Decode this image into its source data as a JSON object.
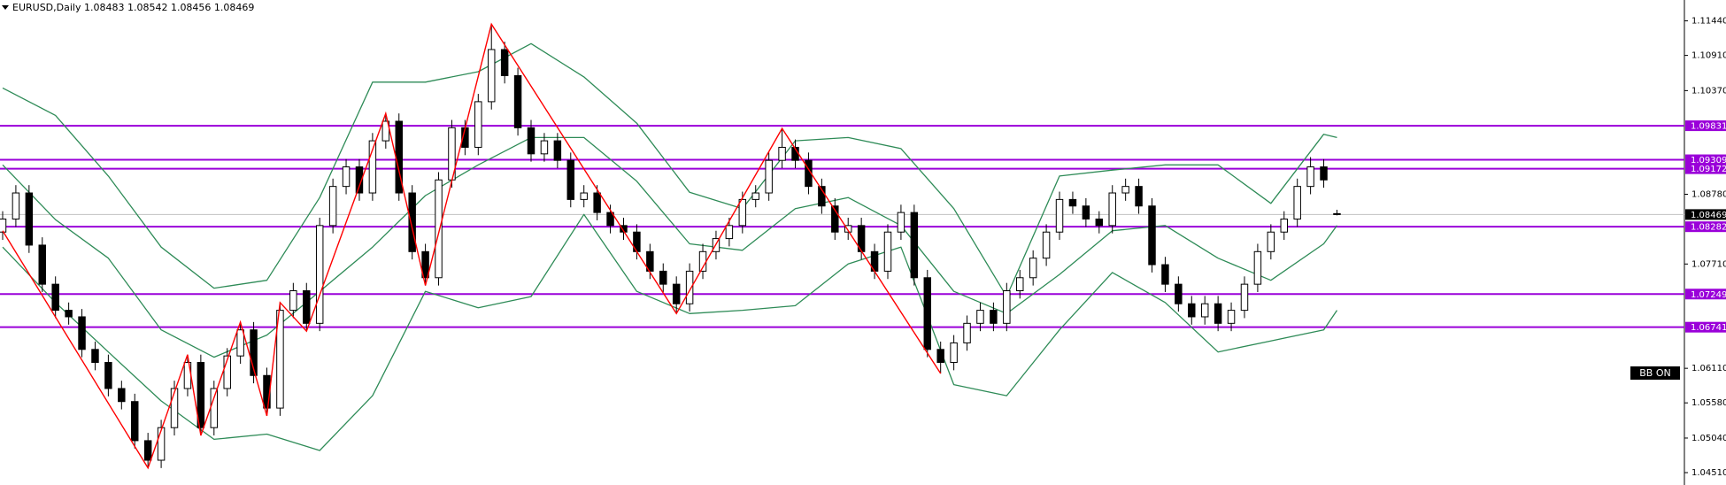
{
  "chart_data": {
    "type": "candlestick",
    "title": "EURUSD,Daily  1.08483 1.08542 1.08456 1.08469",
    "ylim": [
      1.0432,
      1.1176
    ],
    "xlim": [
      -0.2,
      127.3
    ],
    "yticks": [
      {
        "value": 1.1144,
        "label": "1.11440"
      },
      {
        "value": 1.1091,
        "label": "1.10910"
      },
      {
        "value": 1.1037,
        "label": "1.10370"
      },
      {
        "value": 1.0878,
        "label": "1.08780"
      },
      {
        "value": 1.0771,
        "label": "1.07710"
      },
      {
        "value": 1.0611,
        "label": "1.06110"
      },
      {
        "value": 1.0558,
        "label": "1.05580"
      },
      {
        "value": 1.0504,
        "label": "1.05040"
      },
      {
        "value": 1.0451,
        "label": "1.04510"
      }
    ],
    "up_color": "#ffffff",
    "down_color": "#000000",
    "candles": [
      [
        1.082,
        1.0852,
        1.0808,
        1.084
      ],
      [
        1.084,
        1.0892,
        1.0828,
        1.088
      ],
      [
        1.088,
        1.0892,
        1.0788,
        1.08
      ],
      [
        1.08,
        1.0812,
        1.0728,
        1.074
      ],
      [
        1.074,
        1.0752,
        1.0688,
        1.07
      ],
      [
        1.07,
        1.0712,
        1.0678,
        1.069
      ],
      [
        1.069,
        1.0702,
        1.0628,
        1.064
      ],
      [
        1.064,
        1.0652,
        1.0608,
        1.062
      ],
      [
        1.062,
        1.0632,
        1.0568,
        1.058
      ],
      [
        1.058,
        1.0592,
        1.0548,
        1.056
      ],
      [
        1.056,
        1.0572,
        1.0488,
        1.05
      ],
      [
        1.05,
        1.0512,
        1.0458,
        1.047
      ],
      [
        1.047,
        1.0532,
        1.0458,
        1.052
      ],
      [
        1.052,
        1.0592,
        1.0508,
        1.058
      ],
      [
        1.058,
        1.0632,
        1.0568,
        1.062
      ],
      [
        1.062,
        1.0632,
        1.0508,
        1.052
      ],
      [
        1.052,
        1.0592,
        1.0508,
        1.058
      ],
      [
        1.058,
        1.0642,
        1.0568,
        1.063
      ],
      [
        1.063,
        1.0682,
        1.0618,
        1.067
      ],
      [
        1.067,
        1.0682,
        1.0588,
        1.06
      ],
      [
        1.06,
        1.0612,
        1.0538,
        1.055
      ],
      [
        1.055,
        1.0712,
        1.0538,
        1.07
      ],
      [
        1.07,
        1.0742,
        1.0688,
        1.073
      ],
      [
        1.073,
        1.0742,
        1.0668,
        1.068
      ],
      [
        1.068,
        1.0842,
        1.0668,
        1.083
      ],
      [
        1.083,
        1.0902,
        1.0818,
        1.089
      ],
      [
        1.089,
        1.0932,
        1.0878,
        1.092
      ],
      [
        1.092,
        1.0932,
        1.0868,
        1.088
      ],
      [
        1.088,
        1.0972,
        1.0868,
        1.096
      ],
      [
        1.096,
        1.1002,
        1.0948,
        1.099
      ],
      [
        1.099,
        1.1002,
        1.0868,
        1.088
      ],
      [
        1.088,
        1.0892,
        1.0778,
        1.079
      ],
      [
        1.079,
        1.0802,
        1.0738,
        1.075
      ],
      [
        1.075,
        1.0912,
        1.0738,
        1.09
      ],
      [
        1.09,
        1.0992,
        1.0888,
        1.098
      ],
      [
        1.098,
        1.0992,
        1.0938,
        1.095
      ],
      [
        1.095,
        1.1032,
        1.0938,
        1.102
      ],
      [
        1.102,
        1.1139,
        1.1008,
        1.11
      ],
      [
        1.11,
        1.1112,
        1.1048,
        1.106
      ],
      [
        1.106,
        1.1072,
        1.0968,
        1.098
      ],
      [
        1.098,
        1.0992,
        1.0928,
        1.094
      ],
      [
        1.094,
        1.0972,
        1.0928,
        1.096
      ],
      [
        1.096,
        1.0972,
        1.0918,
        1.093
      ],
      [
        1.093,
        1.0942,
        1.0858,
        1.087
      ],
      [
        1.087,
        1.0892,
        1.0858,
        1.088
      ],
      [
        1.088,
        1.0892,
        1.0838,
        1.085
      ],
      [
        1.085,
        1.0862,
        1.0818,
        1.083
      ],
      [
        1.083,
        1.0842,
        1.0808,
        1.082
      ],
      [
        1.082,
        1.0832,
        1.0778,
        1.079
      ],
      [
        1.079,
        1.0802,
        1.0748,
        1.076
      ],
      [
        1.076,
        1.0772,
        1.0728,
        1.074
      ],
      [
        1.074,
        1.0752,
        1.0695,
        1.071
      ],
      [
        1.071,
        1.0772,
        1.0698,
        1.076
      ],
      [
        1.076,
        1.0802,
        1.0748,
        1.079
      ],
      [
        1.079,
        1.0822,
        1.0778,
        1.081
      ],
      [
        1.081,
        1.0842,
        1.0798,
        1.083
      ],
      [
        1.083,
        1.0882,
        1.0818,
        1.087
      ],
      [
        1.087,
        1.0892,
        1.0858,
        1.088
      ],
      [
        1.088,
        1.0942,
        1.0868,
        1.093
      ],
      [
        1.093,
        1.0979,
        1.0918,
        1.095
      ],
      [
        1.095,
        1.0962,
        1.0918,
        1.093
      ],
      [
        1.093,
        1.0942,
        1.0878,
        1.089
      ],
      [
        1.089,
        1.0902,
        1.0848,
        1.086
      ],
      [
        1.086,
        1.0872,
        1.0808,
        1.082
      ],
      [
        1.082,
        1.0842,
        1.0808,
        1.083
      ],
      [
        1.083,
        1.0842,
        1.0778,
        1.079
      ],
      [
        1.079,
        1.0802,
        1.0748,
        1.076
      ],
      [
        1.076,
        1.0832,
        1.0748,
        1.082
      ],
      [
        1.082,
        1.0862,
        1.0808,
        1.085
      ],
      [
        1.085,
        1.0862,
        1.0738,
        1.075
      ],
      [
        1.075,
        1.0762,
        1.0628,
        1.064
      ],
      [
        1.064,
        1.0652,
        1.0603,
        1.062
      ],
      [
        1.062,
        1.0662,
        1.0608,
        1.065
      ],
      [
        1.065,
        1.0692,
        1.0638,
        1.068
      ],
      [
        1.068,
        1.0712,
        1.0668,
        1.07
      ],
      [
        1.07,
        1.0712,
        1.0668,
        1.068
      ],
      [
        1.068,
        1.0742,
        1.0668,
        1.073
      ],
      [
        1.073,
        1.0762,
        1.0718,
        1.075
      ],
      [
        1.075,
        1.0792,
        1.0738,
        1.078
      ],
      [
        1.078,
        1.0832,
        1.0768,
        1.082
      ],
      [
        1.082,
        1.0882,
        1.0808,
        1.087
      ],
      [
        1.087,
        1.0882,
        1.0848,
        1.086
      ],
      [
        1.086,
        1.0872,
        1.0828,
        1.084
      ],
      [
        1.084,
        1.0852,
        1.0818,
        1.083
      ],
      [
        1.083,
        1.0892,
        1.0818,
        1.088
      ],
      [
        1.088,
        1.0902,
        1.0868,
        1.089
      ],
      [
        1.089,
        1.0902,
        1.0848,
        1.086
      ],
      [
        1.086,
        1.0872,
        1.0758,
        1.077
      ],
      [
        1.077,
        1.0782,
        1.0728,
        1.074
      ],
      [
        1.074,
        1.0752,
        1.0698,
        1.071
      ],
      [
        1.071,
        1.0722,
        1.0678,
        1.069
      ],
      [
        1.069,
        1.0722,
        1.0678,
        1.071
      ],
      [
        1.071,
        1.0722,
        1.0668,
        1.068
      ],
      [
        1.068,
        1.0712,
        1.0668,
        1.07
      ],
      [
        1.07,
        1.0752,
        1.0688,
        1.074
      ],
      [
        1.074,
        1.0802,
        1.0728,
        1.079
      ],
      [
        1.079,
        1.0832,
        1.0778,
        1.082
      ],
      [
        1.082,
        1.0852,
        1.0808,
        1.084
      ],
      [
        1.084,
        1.0902,
        1.0828,
        1.089
      ],
      [
        1.089,
        1.0935,
        1.0878,
        1.092
      ],
      [
        1.092,
        1.0932,
        1.0888,
        1.09
      ],
      [
        1.08483,
        1.08542,
        1.08456,
        1.08469
      ]
    ],
    "bands": {
      "x": [
        0,
        4,
        8,
        12,
        16,
        20,
        24,
        28,
        32,
        36,
        40,
        44,
        48,
        52,
        56,
        60,
        64,
        68,
        72,
        76,
        80,
        84,
        88,
        92,
        96,
        100,
        101
      ],
      "series": [
        {
          "color": "#2e8b57",
          "values": [
            1.1041,
            1.0999,
            1.0906,
            1.0797,
            1.0734,
            1.0746,
            1.0873,
            1.105,
            1.105,
            1.1066,
            1.1109,
            1.1058,
            1.0987,
            1.0881,
            1.0856,
            1.096,
            1.0965,
            1.0948,
            1.0856,
            1.0721,
            1.0906,
            1.0915,
            1.0923,
            1.0923,
            1.0864,
            1.097,
            1.0965
          ]
        },
        {
          "color": "#2e8b57",
          "values": [
            1.0923,
            1.0839,
            1.078,
            1.067,
            1.0628,
            1.0662,
            1.0729,
            1.0797,
            1.0876,
            1.0923,
            1.0965,
            1.0965,
            1.0898,
            1.0802,
            1.0792,
            1.0856,
            1.0873,
            1.083,
            1.0729,
            1.0695,
            1.0755,
            1.0822,
            1.083,
            1.078,
            1.0746,
            1.0802,
            1.083
          ]
        },
        {
          "color": "#2e8b57",
          "values": [
            1.0797,
            1.0712,
            1.0636,
            1.0561,
            1.0502,
            1.051,
            1.0485,
            1.0569,
            1.0729,
            1.0704,
            1.0721,
            1.0847,
            1.0729,
            1.0695,
            1.07,
            1.0707,
            1.0771,
            1.0797,
            1.0586,
            1.0569,
            1.067,
            1.0758,
            1.0712,
            1.0636,
            1.0653,
            1.067,
            1.07
          ]
        }
      ]
    },
    "zigzag": {
      "color": "#ff0000",
      "x": [
        0,
        11,
        14,
        15,
        18,
        20,
        21,
        23,
        29,
        32,
        37,
        51,
        59,
        71
      ],
      "values": [
        1.0822,
        1.0458,
        1.0632,
        1.0508,
        1.0682,
        1.0538,
        1.0712,
        1.0668,
        1.1002,
        1.0738,
        1.1139,
        1.0695,
        1.0979,
        1.0603
      ]
    },
    "level_color": "#9a00d9",
    "levels": [
      1.09831,
      1.09309,
      1.09172,
      1.08282,
      1.07249,
      1.06741
    ],
    "last_price": 1.08469,
    "indicator_label": "BB ON"
  }
}
